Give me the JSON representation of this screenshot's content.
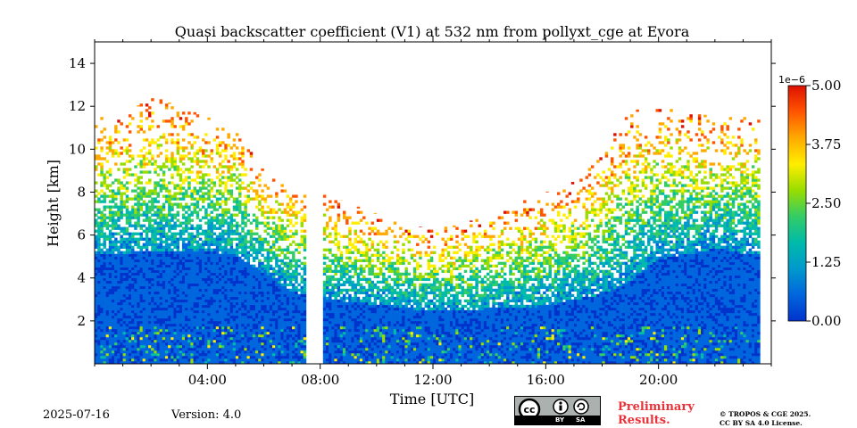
{
  "chart_data": {
    "type": "heatmap",
    "title": "Quasi backscatter coefficient (V1) at 532 nm from pollyxt_cge at Evora",
    "xlabel": "Time [UTC]",
    "ylabel": "Height [km]",
    "xlim_hours": [
      0,
      24
    ],
    "ylim_km": [
      0,
      15
    ],
    "x_ticks": [
      {
        "value": 4,
        "label": "04:00"
      },
      {
        "value": 8,
        "label": "08:00"
      },
      {
        "value": 12,
        "label": "12:00"
      },
      {
        "value": 16,
        "label": "16:00"
      },
      {
        "value": 20,
        "label": "20:00"
      }
    ],
    "y_ticks": [
      {
        "value": 2,
        "label": "2"
      },
      {
        "value": 4,
        "label": "4"
      },
      {
        "value": 6,
        "label": "6"
      },
      {
        "value": 8,
        "label": "8"
      },
      {
        "value": 10,
        "label": "10"
      },
      {
        "value": 12,
        "label": "12"
      },
      {
        "value": 14,
        "label": "14"
      }
    ],
    "data_extent_hours": [
      0,
      23.6
    ],
    "data_gap_hours": [
      7.55,
      8.0
    ],
    "signal_top_km": [
      [
        0,
        11.5
      ],
      [
        1,
        11.5
      ],
      [
        2,
        12.5
      ],
      [
        3,
        12.0
      ],
      [
        4,
        11.5
      ],
      [
        5,
        11.0
      ],
      [
        6,
        9.0
      ],
      [
        7,
        8.5
      ],
      [
        7.55,
        8.2
      ],
      [
        8,
        8.0
      ],
      [
        9,
        7.5
      ],
      [
        10,
        7.0
      ],
      [
        11,
        6.5
      ],
      [
        12,
        6.3
      ],
      [
        13,
        6.5
      ],
      [
        14,
        7.0
      ],
      [
        15,
        7.5
      ],
      [
        16,
        8.0
      ],
      [
        17,
        8.5
      ],
      [
        18,
        10.0
      ],
      [
        19,
        11.8
      ],
      [
        20,
        12.0
      ],
      [
        21,
        11.8
      ],
      [
        22,
        11.5
      ],
      [
        23,
        11.5
      ],
      [
        23.6,
        11.5
      ]
    ],
    "aerosol_layer_top_km": [
      [
        0,
        5.0
      ],
      [
        2,
        5.2
      ],
      [
        4,
        5.2
      ],
      [
        5,
        5.0
      ],
      [
        6,
        4.2
      ],
      [
        7,
        3.3
      ],
      [
        8,
        3.0
      ],
      [
        10,
        2.7
      ],
      [
        12,
        2.4
      ],
      [
        14,
        2.5
      ],
      [
        16,
        2.6
      ],
      [
        18,
        3.2
      ],
      [
        19,
        3.8
      ],
      [
        20,
        4.8
      ],
      [
        22,
        5.3
      ],
      [
        23.6,
        5.0
      ]
    ],
    "near_ground_layer_km": 1.7,
    "colorbar": {
      "min": 0.0,
      "max": 5.0,
      "ticks": [
        "0.00",
        "1.25",
        "2.50",
        "3.75",
        "5.00"
      ],
      "scale_label": "1e−6",
      "colormap": [
        "#0033cc",
        "#0066dd",
        "#0099cc",
        "#00bbaa",
        "#33cc66",
        "#99dd00",
        "#ffee00",
        "#ffaa00",
        "#ff5500",
        "#dd1100"
      ]
    }
  },
  "footer": {
    "date": "2025-07-16",
    "version": "Version: 4.0",
    "preliminary_line1": "Preliminary",
    "preliminary_line2": "Results.",
    "license_line1": "© TROPOS & CGE 2025.",
    "license_line2": "CC BY SA 4.0 License.",
    "cc_by_label": "BY",
    "cc_sa_label": "SA"
  }
}
